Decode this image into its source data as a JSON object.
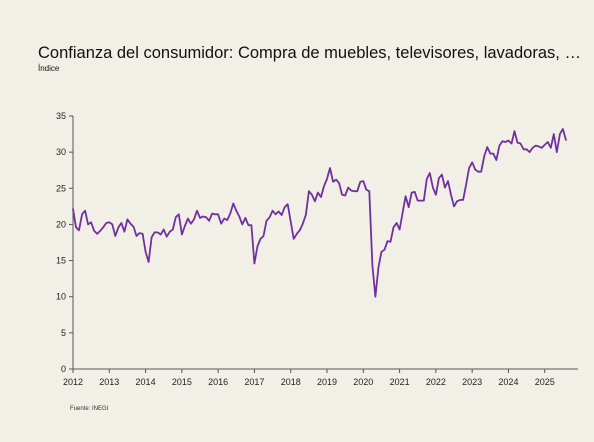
{
  "title": "Confianza del consumidor: Compra de muebles, televisores, lavadoras, otros aparatos electrodomésticos",
  "subtitle": "Índice",
  "source": "Fuente: INEGI",
  "colors": {
    "background": "#f1efe6",
    "line": "#7030a0",
    "axis": "#555555"
  },
  "chart_data": {
    "type": "line",
    "title": "Confianza del consumidor: Compra de muebles, televisores, lavadoras, otros aparatos electrodomésticos",
    "ylabel": "Índice",
    "xlabel": "",
    "ylim": [
      0,
      35
    ],
    "yticks": [
      0,
      5,
      10,
      15,
      20,
      25,
      30,
      35
    ],
    "xlim": [
      "2012-01",
      "2025-12"
    ],
    "xticks": [
      "2012",
      "2013",
      "2014",
      "2015",
      "2016",
      "2017",
      "2018",
      "2019",
      "2020",
      "2021",
      "2022",
      "2023",
      "2024",
      "2025"
    ],
    "grid": false,
    "legend": "none",
    "series": [
      {
        "name": "",
        "start": "2012-01",
        "frequency": "monthly",
        "values": [
          22.1,
          19.6,
          19.2,
          21.4,
          21.9,
          20.0,
          20.3,
          19.1,
          18.7,
          19.1,
          19.6,
          20.2,
          20.3,
          20.0,
          18.4,
          19.6,
          20.2,
          19.0,
          20.7,
          20.1,
          19.7,
          18.4,
          18.8,
          18.7,
          16.2,
          14.8,
          18.2,
          18.9,
          18.9,
          18.6,
          19.3,
          18.3,
          19.0,
          19.3,
          21.0,
          21.4,
          18.6,
          19.8,
          20.8,
          20.1,
          20.7,
          21.9,
          20.9,
          21.1,
          21.0,
          20.5,
          21.5,
          21.4,
          21.4,
          20.1,
          20.8,
          20.6,
          21.5,
          22.9,
          21.9,
          21.1,
          20.0,
          20.9,
          19.9,
          19.9,
          14.6,
          17.0,
          18.0,
          18.4,
          20.5,
          21.0,
          21.9,
          21.4,
          21.8,
          21.3,
          22.4,
          22.8,
          20.4,
          18.0,
          18.7,
          19.2,
          20.1,
          21.3,
          24.6,
          24.1,
          23.2,
          24.4,
          23.8,
          25.3,
          26.3,
          27.8,
          25.9,
          26.2,
          25.7,
          24.1,
          24.0,
          25.1,
          24.7,
          24.6,
          24.6,
          25.9,
          26.0,
          24.8,
          24.6,
          14.3,
          10.0,
          14.0,
          16.2,
          16.5,
          17.7,
          17.6,
          19.6,
          20.2,
          19.3,
          21.6,
          23.9,
          22.4,
          24.4,
          24.5,
          23.3,
          23.3,
          23.3,
          26.3,
          27.1,
          25.1,
          24.1,
          26.4,
          26.9,
          25.1,
          26.0,
          24.1,
          22.5,
          23.2,
          23.4,
          23.4,
          25.5,
          27.8,
          28.6,
          27.6,
          27.3,
          27.3,
          29.5,
          30.7,
          29.8,
          29.8,
          28.9,
          30.9,
          31.5,
          31.4,
          31.6,
          31.2,
          32.9,
          31.3,
          31.2,
          30.4,
          30.4,
          30.0,
          30.6,
          30.9,
          30.8,
          30.6,
          31.0,
          31.4,
          30.6,
          32.5,
          30.0,
          32.5,
          33.2,
          31.7
        ]
      }
    ]
  }
}
